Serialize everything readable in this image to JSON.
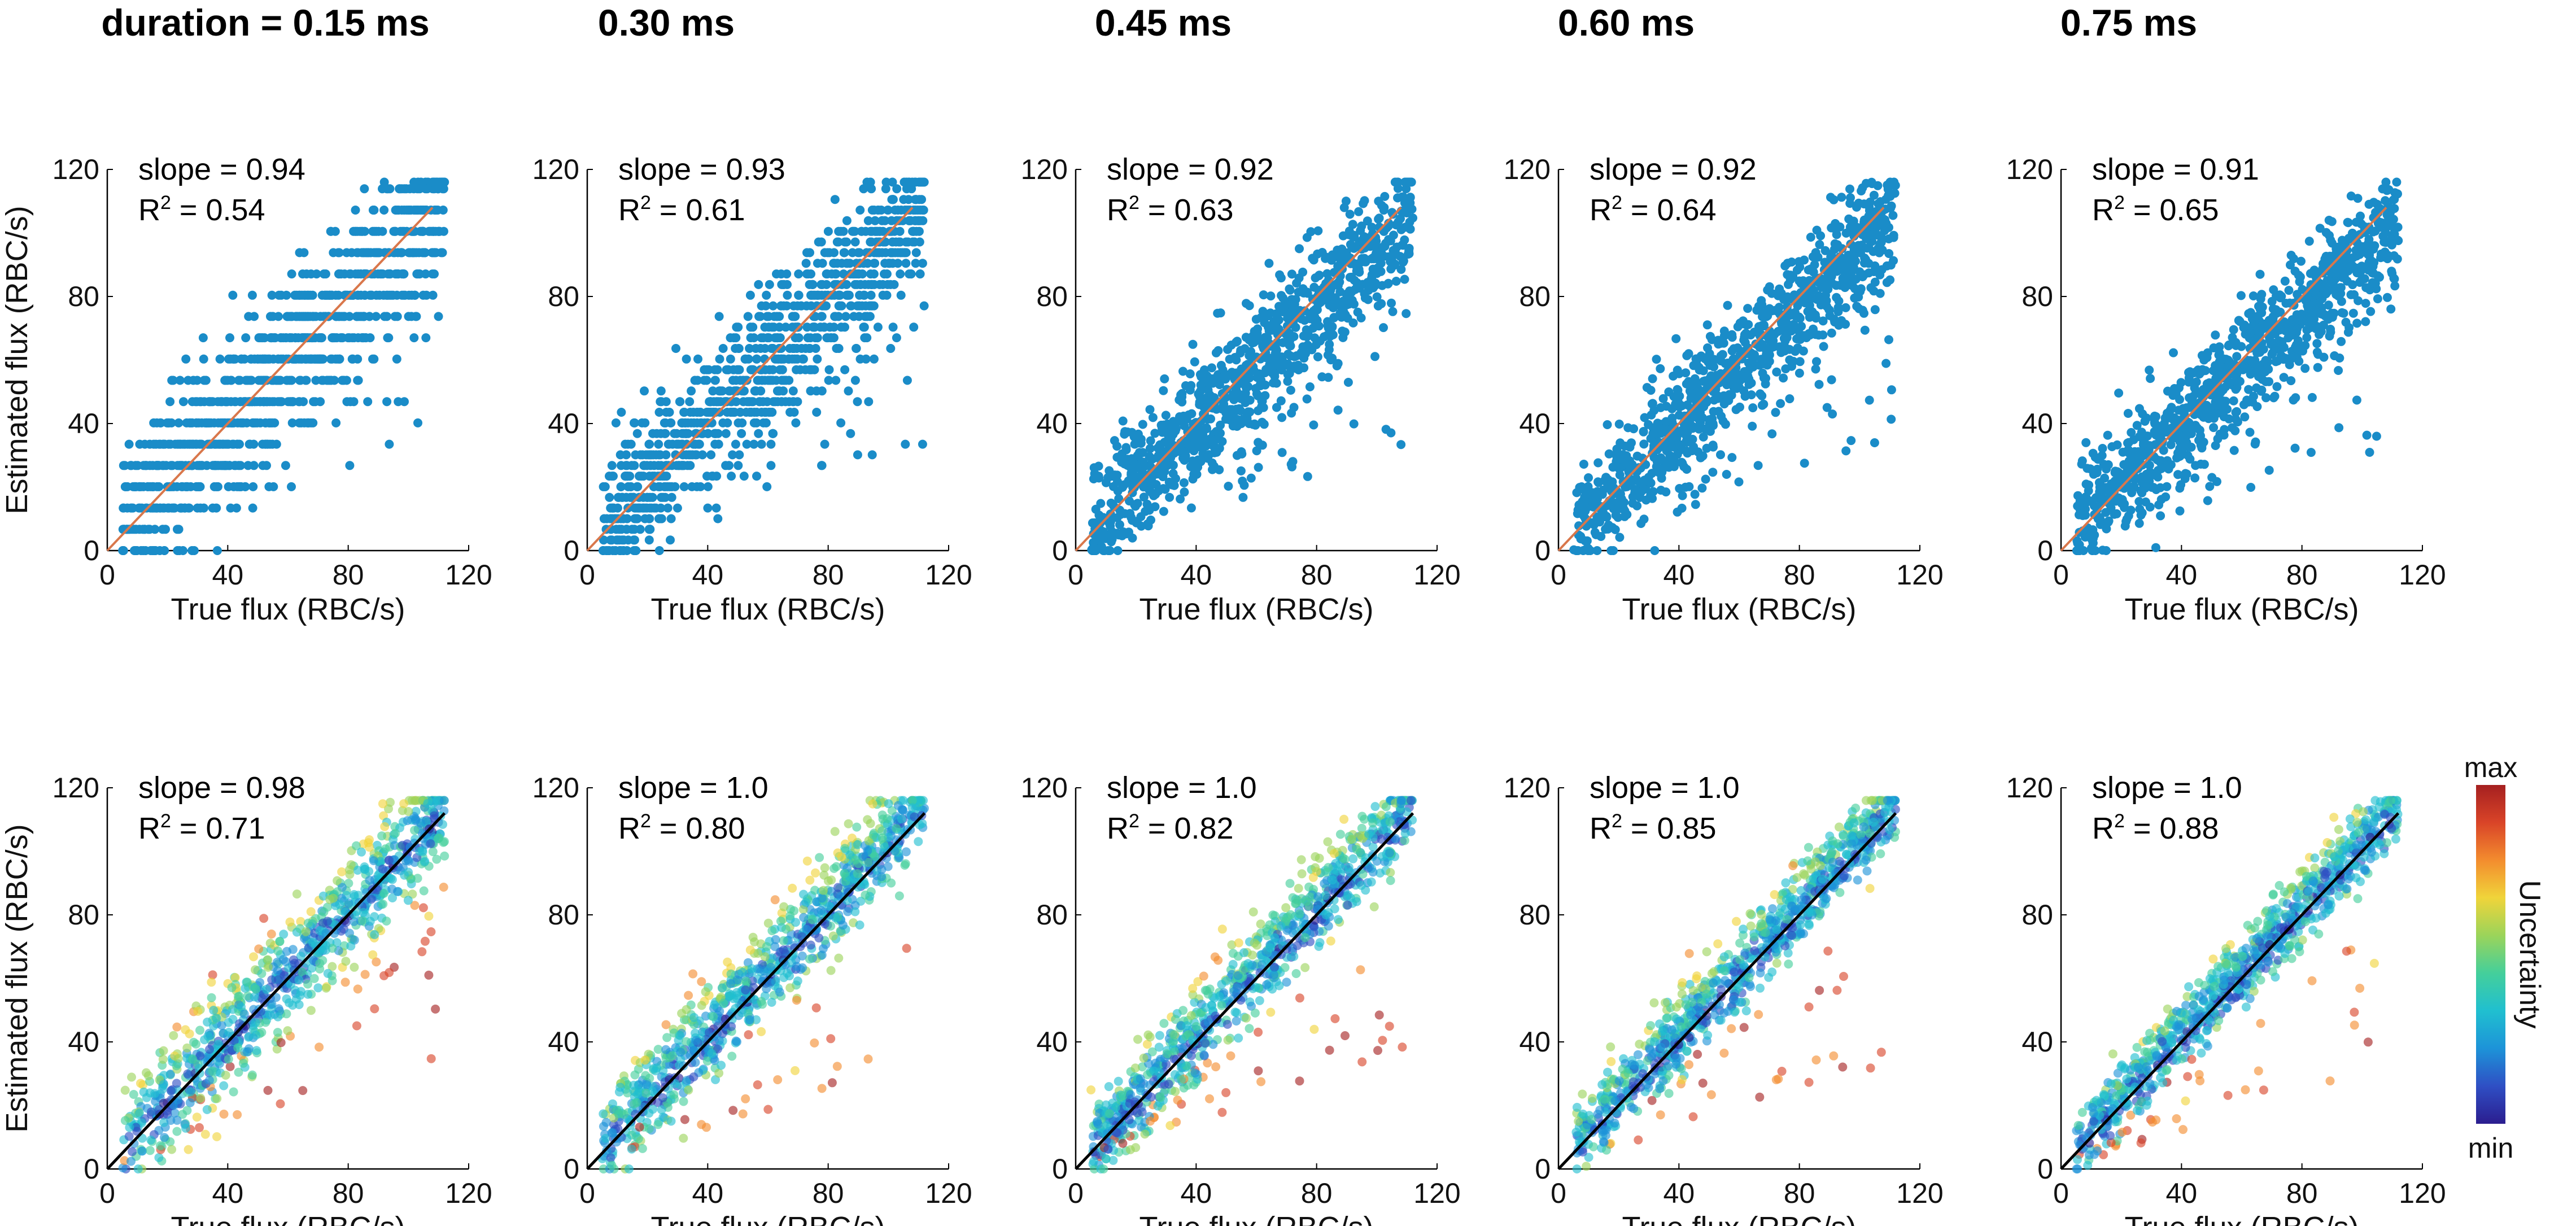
{
  "column_titles": [
    "duration = 0.15 ms",
    "0.30 ms",
    "0.45 ms",
    "0.60 ms",
    "0.75 ms"
  ],
  "colorbar": {
    "label": "Uncertainty",
    "max_label": "max",
    "min_label": "min",
    "colors": [
      "#2b1d8f",
      "#2f4fc4",
      "#1d93d8",
      "#20bfd0",
      "#44cf9b",
      "#9bd45a",
      "#f0d43a",
      "#f38c2e",
      "#d94428",
      "#a52020"
    ]
  },
  "colors": {
    "point_blue": "#1a8cc8",
    "fit_line_top": "#d9774b",
    "fit_line_bottom": "#000000"
  },
  "chart_data": [
    {
      "type": "scatter",
      "row": "top",
      "duration": "0.15 ms",
      "xlabel": "True flux (RBC/s)",
      "ylabel": "Estimated flux (RBC/s)",
      "xlim": [
        0,
        120
      ],
      "ylim": [
        0,
        120
      ],
      "xticks": [
        0,
        40,
        80,
        120
      ],
      "yticks": [
        0,
        40,
        80,
        120
      ],
      "slope_text": "slope = 0.94",
      "r2_text": "= 0.54",
      "slope": 0.94,
      "r2": 0.54,
      "seed": 11,
      "quantized": true,
      "step": 6.7,
      "noise": 13
    },
    {
      "type": "scatter",
      "row": "top",
      "duration": "0.30 ms",
      "xlabel": "True flux (RBC/s)",
      "ylabel": "Estimated flux (RBC/s)",
      "xlim": [
        0,
        120
      ],
      "ylim": [
        0,
        120
      ],
      "xticks": [
        0,
        40,
        80,
        120
      ],
      "yticks": [
        0,
        40,
        80,
        120
      ],
      "slope_text": "slope = 0.93",
      "r2_text": "= 0.61",
      "slope": 0.93,
      "r2": 0.61,
      "seed": 23,
      "quantized": true,
      "step": 3.35,
      "noise": 11
    },
    {
      "type": "scatter",
      "row": "top",
      "duration": "0.45 ms",
      "xlabel": "True flux (RBC/s)",
      "ylabel": "Estimated flux (RBC/s)",
      "xlim": [
        0,
        120
      ],
      "ylim": [
        0,
        120
      ],
      "xticks": [
        0,
        40,
        80,
        120
      ],
      "yticks": [
        0,
        40,
        80,
        120
      ],
      "slope_text": "slope = 0.92",
      "r2_text": "= 0.63",
      "slope": 0.92,
      "r2": 0.63,
      "seed": 37,
      "quantized": false,
      "noise": 10
    },
    {
      "type": "scatter",
      "row": "top",
      "duration": "0.60 ms",
      "xlabel": "True flux (RBC/s)",
      "ylabel": "Estimated flux (RBC/s)",
      "xlim": [
        0,
        120
      ],
      "ylim": [
        0,
        120
      ],
      "xticks": [
        0,
        40,
        80,
        120
      ],
      "yticks": [
        0,
        40,
        80,
        120
      ],
      "slope_text": "slope = 0.92",
      "r2_text": "= 0.64",
      "slope": 0.92,
      "r2": 0.64,
      "seed": 41,
      "quantized": false,
      "noise": 9.5
    },
    {
      "type": "scatter",
      "row": "top",
      "duration": "0.75 ms",
      "xlabel": "True flux (RBC/s)",
      "ylabel": "Estimated flux (RBC/s)",
      "xlim": [
        0,
        120
      ],
      "ylim": [
        0,
        120
      ],
      "xticks": [
        0,
        40,
        80,
        120
      ],
      "yticks": [
        0,
        40,
        80,
        120
      ],
      "slope_text": "slope = 0.91",
      "r2_text": "= 0.65",
      "slope": 0.91,
      "r2": 0.65,
      "seed": 53,
      "quantized": false,
      "noise": 9
    },
    {
      "type": "scatter",
      "row": "bottom",
      "duration": "0.15 ms",
      "xlabel": "True flux (RBC/s)",
      "ylabel": "Estimated flux (RBC/s)",
      "xlim": [
        0,
        120
      ],
      "ylim": [
        0,
        120
      ],
      "xticks": [
        0,
        40,
        80,
        120
      ],
      "yticks": [
        0,
        40,
        80,
        120
      ],
      "slope_text": "slope = 0.98",
      "r2_text": "= 0.71",
      "slope": 0.98,
      "r2": 0.71,
      "seed": 61,
      "colored": true,
      "noise": 9
    },
    {
      "type": "scatter",
      "row": "bottom",
      "duration": "0.30 ms",
      "xlabel": "True flux (RBC/s)",
      "ylabel": "Estimated flux (RBC/s)",
      "xlim": [
        0,
        120
      ],
      "ylim": [
        0,
        120
      ],
      "xticks": [
        0,
        40,
        80,
        120
      ],
      "yticks": [
        0,
        40,
        80,
        120
      ],
      "slope_text": "slope = 1.0",
      "r2_text": "= 0.80",
      "slope": 1.0,
      "r2": 0.8,
      "seed": 73,
      "colored": true,
      "noise": 7.5
    },
    {
      "type": "scatter",
      "row": "bottom",
      "duration": "0.45 ms",
      "xlabel": "True flux (RBC/s)",
      "ylabel": "Estimated flux (RBC/s)",
      "xlim": [
        0,
        120
      ],
      "ylim": [
        0,
        120
      ],
      "xticks": [
        0,
        40,
        80,
        120
      ],
      "yticks": [
        0,
        40,
        80,
        120
      ],
      "slope_text": "slope = 1.0",
      "r2_text": "= 0.82",
      "slope": 1.0,
      "r2": 0.82,
      "seed": 89,
      "colored": true,
      "noise": 7
    },
    {
      "type": "scatter",
      "row": "bottom",
      "duration": "0.60 ms",
      "xlabel": "True flux (RBC/s)",
      "ylabel": "Estimated flux (RBC/s)",
      "xlim": [
        0,
        120
      ],
      "ylim": [
        0,
        120
      ],
      "xticks": [
        0,
        40,
        80,
        120
      ],
      "yticks": [
        0,
        40,
        80,
        120
      ],
      "slope_text": "slope = 1.0",
      "r2_text": "= 0.85",
      "slope": 1.0,
      "r2": 0.85,
      "seed": 97,
      "colored": true,
      "noise": 6.3
    },
    {
      "type": "scatter",
      "row": "bottom",
      "duration": "0.75 ms",
      "xlabel": "True flux (RBC/s)",
      "ylabel": "Estimated flux (RBC/s)",
      "xlim": [
        0,
        120
      ],
      "ylim": [
        0,
        120
      ],
      "xticks": [
        0,
        40,
        80,
        120
      ],
      "yticks": [
        0,
        40,
        80,
        120
      ],
      "slope_text": "slope = 1.0",
      "r2_text": "= 0.88",
      "slope": 1.0,
      "r2": 0.88,
      "seed": 101,
      "colored": true,
      "noise": 5.8
    }
  ]
}
